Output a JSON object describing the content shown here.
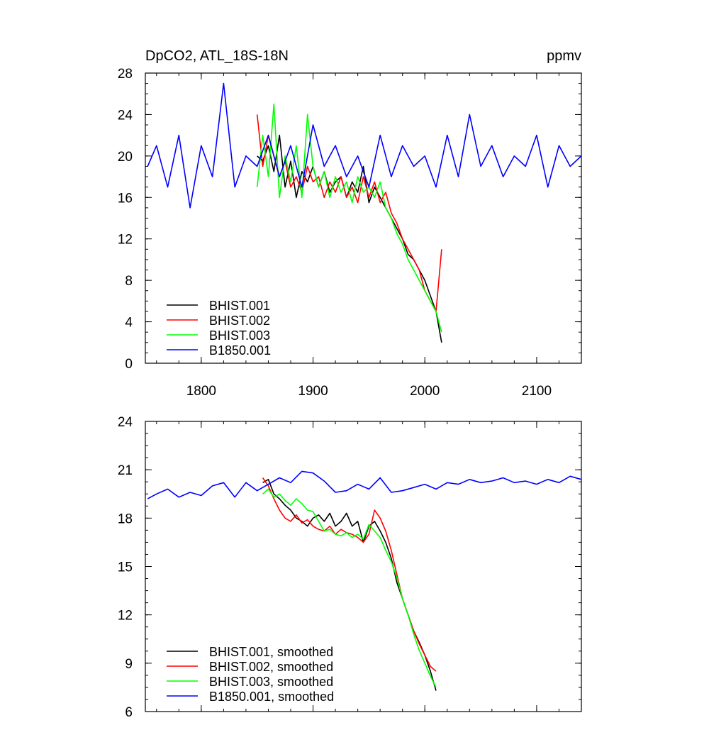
{
  "chart_data": [
    {
      "type": "line",
      "title": "DpCO2, ATL_18S-18N",
      "units": "ppmv",
      "xlabel": "",
      "ylabel": "",
      "xlim": [
        1750,
        2140
      ],
      "ylim": [
        0,
        28
      ],
      "x_ticks": [
        1800,
        1900,
        2000,
        2100
      ],
      "y_ticks": [
        0,
        4,
        8,
        12,
        16,
        20,
        24,
        28
      ],
      "legend": "bottom-left",
      "series": [
        {
          "name": "BHIST.001",
          "color": "#000000",
          "x": [
            1850,
            1855,
            1860,
            1865,
            1870,
            1875,
            1880,
            1885,
            1890,
            1895,
            1900,
            1905,
            1910,
            1915,
            1920,
            1925,
            1930,
            1935,
            1940,
            1945,
            1950,
            1955,
            1960,
            1965,
            1970,
            1975,
            1980,
            1985,
            1990,
            1995,
            2000,
            2005,
            2010,
            2015
          ],
          "y": [
            20,
            19.5,
            21,
            18.5,
            22,
            17,
            19.5,
            16,
            18.5,
            17.5,
            19,
            17,
            18.5,
            16.5,
            17.5,
            18,
            16,
            17.5,
            16.5,
            19,
            15.5,
            17,
            16,
            15,
            14,
            13,
            12,
            10.5,
            10,
            9,
            8,
            6.5,
            5,
            2
          ]
        },
        {
          "name": "BHIST.002",
          "color": "#ff0000",
          "x": [
            1850,
            1855,
            1860,
            1865,
            1870,
            1875,
            1880,
            1885,
            1890,
            1895,
            1900,
            1905,
            1910,
            1915,
            1920,
            1925,
            1930,
            1935,
            1940,
            1945,
            1950,
            1955,
            1960,
            1965,
            1970,
            1975,
            1980,
            1985,
            1990,
            1995,
            2000,
            2005,
            2010,
            2015
          ],
          "y": [
            24,
            19,
            22,
            20,
            18,
            19.5,
            17,
            18,
            16.5,
            19,
            17.5,
            18,
            16,
            17.5,
            16.5,
            18,
            16,
            17,
            15.5,
            18,
            16,
            17.5,
            15.5,
            16.5,
            14.5,
            13.5,
            12,
            11,
            10,
            9,
            7,
            6,
            5,
            11
          ]
        },
        {
          "name": "BHIST.003",
          "color": "#00ff00",
          "x": [
            1850,
            1855,
            1860,
            1865,
            1870,
            1875,
            1880,
            1885,
            1890,
            1895,
            1900,
            1905,
            1910,
            1915,
            1920,
            1925,
            1930,
            1935,
            1940,
            1945,
            1950,
            1955,
            1960,
            1965,
            1970,
            1975,
            1980,
            1985,
            1990,
            1995,
            2000,
            2005,
            2010,
            2015
          ],
          "y": [
            17,
            22,
            18,
            25,
            16,
            20,
            17.5,
            21,
            16,
            24,
            19,
            17,
            18.5,
            16,
            18,
            16.5,
            17.5,
            15.5,
            18,
            16.5,
            17,
            16,
            17.5,
            15,
            14,
            12.5,
            11.5,
            10,
            9,
            8,
            7,
            6,
            5,
            3
          ]
        },
        {
          "name": "B1850.001",
          "color": "#0000ff",
          "x": [
            1752,
            1760,
            1770,
            1780,
            1790,
            1800,
            1810,
            1820,
            1830,
            1840,
            1850,
            1860,
            1870,
            1880,
            1890,
            1900,
            1910,
            1920,
            1930,
            1940,
            1950,
            1960,
            1970,
            1980,
            1990,
            2000,
            2010,
            2020,
            2030,
            2040,
            2050,
            2060,
            2070,
            2080,
            2090,
            2100,
            2110,
            2120,
            2130,
            2140
          ],
          "y": [
            19,
            21,
            17,
            22,
            15,
            21,
            18,
            27,
            17,
            20,
            19,
            22,
            18,
            21,
            17,
            23,
            19,
            21,
            18,
            20,
            17,
            22,
            18,
            21,
            19,
            20,
            17,
            22,
            18,
            24,
            19,
            21,
            18,
            20,
            19,
            22,
            17,
            21,
            19,
            20
          ]
        }
      ]
    },
    {
      "type": "line",
      "title": "",
      "xlabel": "",
      "ylabel": "",
      "xlim": [
        1750,
        2140
      ],
      "ylim": [
        6,
        24
      ],
      "x_ticks": [
        1800,
        1900,
        2000,
        2100
      ],
      "y_ticks": [
        6,
        9,
        12,
        15,
        18,
        21,
        24
      ],
      "legend": "bottom-left",
      "series": [
        {
          "name": "BHIST.001, smoothed",
          "color": "#000000",
          "x": [
            1855,
            1860,
            1865,
            1870,
            1875,
            1880,
            1885,
            1890,
            1895,
            1900,
            1905,
            1910,
            1915,
            1920,
            1925,
            1930,
            1935,
            1940,
            1945,
            1950,
            1955,
            1960,
            1965,
            1970,
            1975,
            1980,
            1985,
            1990,
            1995,
            2000,
            2005,
            2010
          ],
          "y": [
            20.2,
            20.4,
            19.5,
            19.2,
            18.8,
            18.5,
            18,
            17.8,
            17.5,
            18,
            18.2,
            17.8,
            18.3,
            17.5,
            17.8,
            18.3,
            17.5,
            17.8,
            16.5,
            17.5,
            17.8,
            17.2,
            16.5,
            15.5,
            14,
            13,
            12,
            11,
            10.3,
            9.5,
            8.5,
            7.3
          ]
        },
        {
          "name": "BHIST.002, smoothed",
          "color": "#ff0000",
          "x": [
            1855,
            1860,
            1865,
            1870,
            1875,
            1880,
            1885,
            1890,
            1895,
            1900,
            1905,
            1910,
            1915,
            1920,
            1925,
            1930,
            1935,
            1940,
            1945,
            1950,
            1955,
            1960,
            1965,
            1970,
            1975,
            1980,
            1985,
            1990,
            1995,
            2000,
            2005,
            2010
          ],
          "y": [
            20.5,
            20,
            19.2,
            18.5,
            18,
            17.8,
            18.2,
            17.7,
            17.9,
            17.5,
            17.3,
            17.2,
            17.5,
            17,
            17.3,
            17.1,
            17,
            16.8,
            16.5,
            17,
            18.5,
            18,
            17.2,
            16,
            14.5,
            13,
            12,
            11,
            10.2,
            9.5,
            8.8,
            8.5
          ]
        },
        {
          "name": "BHIST.003, smoothed",
          "color": "#00ff00",
          "x": [
            1855,
            1860,
            1865,
            1870,
            1875,
            1880,
            1885,
            1890,
            1895,
            1900,
            1905,
            1910,
            1915,
            1920,
            1925,
            1930,
            1935,
            1940,
            1945,
            1950,
            1955,
            1960,
            1965,
            1970,
            1975,
            1980,
            1985,
            1990,
            1995,
            2000,
            2005,
            2010
          ],
          "y": [
            19.5,
            19.8,
            19.3,
            19.5,
            19.1,
            18.8,
            19.2,
            18.9,
            18.5,
            18.4,
            17.8,
            17.2,
            17.3,
            17,
            16.9,
            17.1,
            16.8,
            17,
            16.7,
            17.6,
            17.2,
            16.8,
            16,
            15.3,
            14.3,
            13,
            12,
            10.8,
            9.8,
            9,
            8.2,
            7.5
          ]
        },
        {
          "name": "B1850.001, smoothed",
          "color": "#0000ff",
          "x": [
            1752,
            1760,
            1770,
            1780,
            1790,
            1800,
            1810,
            1820,
            1830,
            1840,
            1850,
            1860,
            1870,
            1880,
            1890,
            1900,
            1910,
            1920,
            1930,
            1940,
            1950,
            1960,
            1970,
            1980,
            1990,
            2000,
            2010,
            2020,
            2030,
            2040,
            2050,
            2060,
            2070,
            2080,
            2090,
            2100,
            2110,
            2120,
            2130,
            2140
          ],
          "y": [
            19.2,
            19.5,
            19.8,
            19.3,
            19.6,
            19.4,
            20,
            20.2,
            19.3,
            20.2,
            19.7,
            20.1,
            20.5,
            20.2,
            20.9,
            20.8,
            20.3,
            19.6,
            19.7,
            20.1,
            19.8,
            20.5,
            19.6,
            19.7,
            19.9,
            20.1,
            19.8,
            20.2,
            20.1,
            20.4,
            20.2,
            20.3,
            20.5,
            20.2,
            20.3,
            20.1,
            20.4,
            20.2,
            20.6,
            20.4
          ]
        }
      ]
    }
  ]
}
